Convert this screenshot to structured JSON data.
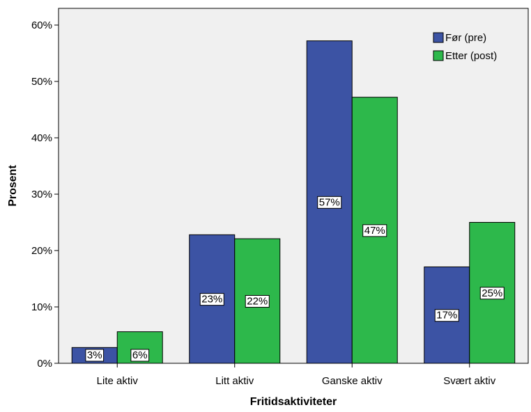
{
  "chart_data": {
    "type": "bar",
    "categories": [
      "Lite aktiv",
      "Litt aktiv",
      "Ganske aktiv",
      "Svært aktiv"
    ],
    "series": [
      {
        "name": "Før (pre)",
        "values": [
          2.8,
          22.8,
          57.2,
          17.1
        ],
        "labels": [
          "3%",
          "23%",
          "57%",
          "17%"
        ]
      },
      {
        "name": "Etter (post)",
        "values": [
          5.6,
          22.1,
          47.2,
          25.0
        ],
        "labels": [
          "6%",
          "22%",
          "47%",
          "25%"
        ]
      }
    ],
    "xlabel": "Fritidsaktiviteter",
    "ylabel": "Prosent",
    "ylim": [
      0,
      60
    ],
    "yticks": [
      0,
      10,
      20,
      30,
      40,
      50,
      60
    ],
    "ytick_labels": [
      "0%",
      "10%",
      "20%",
      "30%",
      "40%",
      "50%",
      "60%"
    ],
    "grid": false,
    "legend_position": "top-right",
    "colors": {
      "series": [
        "#3c53a4",
        "#2db84b"
      ],
      "plot_background": "#f0f0f0"
    }
  }
}
